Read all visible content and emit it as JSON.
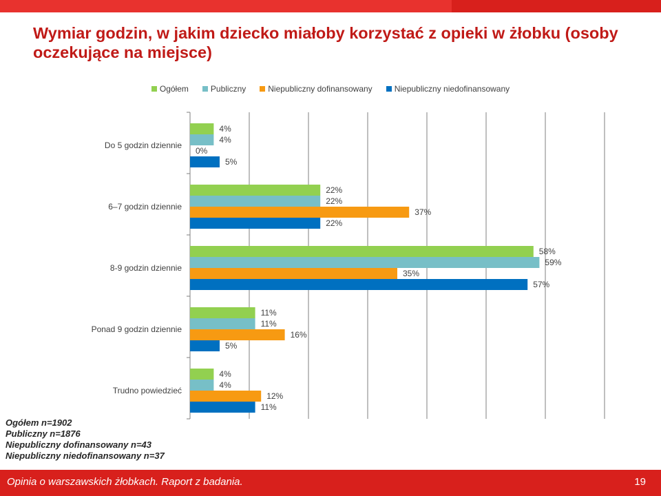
{
  "slide": {
    "title": "Wymiar godzin, w jakim dziecko miałoby korzystać z opieki w żłobku (osoby oczekujące na miejsce)",
    "footer_text": "Opinia o warszawskich żłobkach. Raport z badania.",
    "page_number": "19",
    "notes": [
      "Ogółem n=1902",
      "Publiczny n=1876",
      "Niepubliczny dofinansowany n=43",
      "Niepubliczny niedofinansowany n=37"
    ],
    "colors": {
      "header": "#e8322e",
      "footer": "#d8201c",
      "title": "#c01a17"
    }
  },
  "chart_data": {
    "type": "bar",
    "orientation": "horizontal",
    "categories": [
      "Do 5 godzin dziennie",
      "6–7 godzin dziennie",
      "8-9 godzin dziennie",
      "Ponad 9 godzin dziennie",
      "Trudno powiedzieć"
    ],
    "series": [
      {
        "name": "Ogółem",
        "color": "#92d050",
        "values": [
          4,
          22,
          58,
          11,
          4
        ]
      },
      {
        "name": "Publiczny",
        "color": "#77bfc7",
        "values": [
          4,
          22,
          59,
          11,
          4
        ]
      },
      {
        "name": "Niepubliczny dofinansowany",
        "color": "#f79a12",
        "values": [
          0,
          37,
          35,
          16,
          12
        ]
      },
      {
        "name": "Niepubliczny niedofinansowany",
        "color": "#0070c0",
        "values": [
          5,
          22,
          57,
          5,
          11
        ]
      }
    ],
    "value_suffix": "%",
    "xlim": [
      0,
      80
    ],
    "grid": true,
    "legend": "top-center"
  }
}
